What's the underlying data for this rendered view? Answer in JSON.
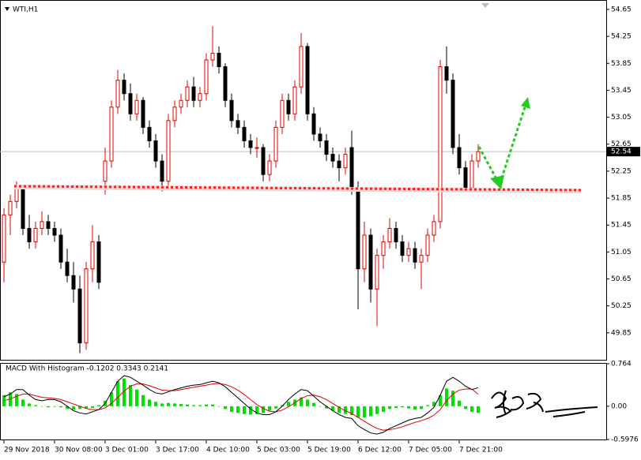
{
  "chart_data": [
    {
      "type": "candlestick",
      "title": "WTI,H1",
      "categories": [
        "29 Nov 2018",
        null,
        null,
        null,
        null,
        null,
        null,
        null,
        "30 Nov 08:00",
        null,
        null,
        null,
        null,
        null,
        null,
        null,
        "3 Dec 01:00",
        null,
        null,
        null,
        null,
        null,
        null,
        null,
        "3 Dec 17:00",
        null,
        null,
        null,
        null,
        null,
        null,
        null,
        "4 Dec 10:00",
        null,
        null,
        null,
        null,
        null,
        null,
        null,
        "5 Dec 03:00",
        null,
        null,
        null,
        null,
        null,
        null,
        null,
        "5 Dec 19:00",
        null,
        null,
        null,
        null,
        null,
        null,
        null,
        "6 Dec 12:00",
        null,
        null,
        null,
        null,
        null,
        null,
        null,
        "7 Dec 05:00",
        null,
        null,
        null,
        null,
        null,
        null,
        null,
        "7 Dec 21:00",
        null,
        null,
        null
      ],
      "open": [
        50.9,
        51.6,
        51.8,
        52.0,
        51.4,
        51.2,
        51.4,
        51.5,
        51.4,
        51.3,
        50.9,
        50.7,
        50.5,
        49.7,
        50.8,
        51.2,
        52.1,
        52.4,
        53.2,
        53.6,
        53.4,
        53.1,
        53.3,
        52.9,
        52.7,
        52.4,
        52.1,
        53.0,
        53.2,
        53.3,
        53.5,
        53.3,
        53.4,
        53.9,
        54.0,
        53.8,
        53.3,
        53.0,
        52.9,
        52.7,
        52.6,
        52.6,
        52.2,
        52.4,
        52.9,
        53.3,
        53.1,
        53.5,
        54.1,
        53.1,
        52.8,
        52.7,
        52.5,
        52.4,
        52.3,
        52.6,
        52.0,
        50.8,
        51.3,
        50.5,
        51.0,
        51.2,
        51.4,
        51.2,
        51.0,
        51.1,
        50.9,
        51.0,
        51.3,
        51.5,
        53.8,
        53.6,
        52.6,
        52.3,
        52.0,
        52.4
      ],
      "high": [
        51.7,
        51.9,
        52.1,
        52.05,
        51.6,
        51.5,
        51.65,
        51.6,
        51.5,
        51.4,
        51.1,
        50.9,
        50.7,
        50.9,
        51.45,
        51.3,
        52.6,
        53.3,
        53.75,
        53.7,
        53.55,
        53.4,
        53.35,
        53.0,
        52.8,
        52.5,
        53.1,
        53.3,
        53.4,
        53.6,
        53.65,
        53.5,
        54.0,
        54.4,
        54.1,
        53.85,
        53.4,
        53.1,
        53.0,
        52.8,
        52.75,
        52.65,
        52.5,
        53.0,
        53.4,
        53.4,
        53.6,
        54.3,
        54.15,
        53.2,
        52.9,
        52.8,
        52.6,
        52.5,
        52.6,
        52.85,
        52.1,
        51.5,
        51.4,
        51.1,
        51.3,
        51.55,
        51.5,
        51.3,
        51.2,
        51.2,
        51.1,
        51.4,
        51.6,
        53.9,
        54.1,
        53.7,
        52.8,
        52.4,
        52.5,
        52.65
      ],
      "low": [
        50.6,
        51.3,
        51.7,
        51.3,
        51.1,
        51.1,
        51.3,
        51.3,
        51.2,
        50.8,
        50.6,
        50.3,
        49.55,
        49.6,
        50.6,
        50.5,
        51.9,
        52.3,
        53.1,
        53.3,
        53.0,
        53.0,
        52.8,
        52.6,
        52.3,
        51.95,
        52.0,
        52.9,
        53.1,
        53.2,
        53.2,
        53.2,
        53.3,
        53.8,
        53.7,
        53.2,
        52.9,
        52.8,
        52.6,
        52.5,
        52.45,
        52.1,
        52.1,
        52.3,
        52.8,
        53.0,
        53.0,
        53.4,
        53.0,
        52.7,
        52.6,
        52.4,
        52.3,
        52.1,
        52.2,
        51.9,
        50.2,
        50.6,
        50.3,
        49.95,
        50.8,
        51.1,
        51.1,
        50.9,
        50.9,
        50.8,
        50.5,
        50.9,
        51.2,
        51.4,
        53.4,
        52.5,
        52.2,
        51.95,
        51.95,
        52.3
      ],
      "close": [
        51.6,
        51.8,
        52.0,
        51.4,
        51.2,
        51.4,
        51.5,
        51.4,
        51.3,
        50.9,
        50.7,
        50.5,
        49.7,
        50.8,
        51.2,
        50.6,
        52.4,
        53.2,
        53.6,
        53.4,
        53.1,
        53.3,
        52.9,
        52.7,
        52.4,
        52.1,
        53.0,
        53.2,
        53.3,
        53.5,
        53.3,
        53.4,
        53.9,
        54.0,
        53.8,
        53.3,
        53.0,
        52.9,
        52.7,
        52.6,
        52.6,
        52.2,
        52.4,
        52.9,
        53.3,
        53.1,
        53.5,
        54.1,
        53.1,
        52.8,
        52.7,
        52.5,
        52.4,
        52.3,
        52.5,
        52.0,
        50.8,
        51.3,
        50.5,
        51.0,
        51.2,
        51.4,
        51.2,
        51.0,
        51.1,
        50.9,
        51.0,
        51.3,
        51.5,
        53.8,
        53.6,
        52.6,
        52.3,
        52.0,
        52.4,
        52.54
      ],
      "up_color": "#e00000",
      "down_color": "#000000",
      "current_price": 52.54,
      "ylim": [
        49.45,
        54.79
      ],
      "yticks": [
        54.65,
        54.25,
        53.85,
        53.45,
        53.05,
        52.65,
        52.25,
        51.85,
        51.45,
        51.05,
        50.65,
        50.25,
        49.85
      ]
    },
    {
      "type": "macd",
      "title": "MACD With Histogram -0.1202 0.3343 0.2141",
      "histogram": {
        "color": "#00e000",
        "values": [
          0.2,
          0.25,
          0.22,
          0.12,
          0.05,
          0.02,
          0.0,
          -0.02,
          -0.01,
          -0.02,
          -0.05,
          -0.06,
          -0.05,
          -0.04,
          -0.03,
          0.02,
          0.1,
          0.25,
          0.45,
          0.5,
          0.38,
          0.3,
          0.2,
          0.12,
          0.08,
          0.05,
          0.06,
          0.05,
          0.04,
          0.03,
          0.02,
          0.02,
          0.03,
          0.03,
          0.0,
          -0.05,
          -0.1,
          -0.12,
          -0.14,
          -0.15,
          -0.14,
          -0.12,
          -0.08,
          -0.04,
          0.02,
          0.08,
          0.12,
          0.16,
          0.12,
          0.06,
          0.0,
          -0.04,
          -0.08,
          -0.12,
          -0.14,
          -0.16,
          -0.2,
          -0.2,
          -0.18,
          -0.14,
          -0.1,
          -0.05,
          -0.03,
          -0.02,
          -0.04,
          -0.06,
          -0.05,
          0.02,
          0.08,
          0.2,
          0.32,
          0.28,
          0.1,
          -0.05,
          -0.1,
          -0.1202
        ]
      },
      "main": {
        "color": "#000000",
        "values": [
          0.17,
          0.22,
          0.3,
          0.3,
          0.2,
          0.12,
          0.1,
          0.12,
          0.12,
          0.08,
          0.0,
          -0.08,
          -0.12,
          -0.14,
          -0.1,
          -0.06,
          0.05,
          0.25,
          0.45,
          0.55,
          0.52,
          0.45,
          0.38,
          0.3,
          0.24,
          0.22,
          0.26,
          0.3,
          0.33,
          0.36,
          0.38,
          0.39,
          0.42,
          0.45,
          0.42,
          0.35,
          0.25,
          0.15,
          0.05,
          -0.05,
          -0.12,
          -0.15,
          -0.15,
          -0.1,
          0.0,
          0.12,
          0.22,
          0.3,
          0.28,
          0.18,
          0.08,
          0.0,
          -0.08,
          -0.15,
          -0.2,
          -0.22,
          -0.35,
          -0.42,
          -0.48,
          -0.5,
          -0.47,
          -0.4,
          -0.35,
          -0.3,
          -0.25,
          -0.22,
          -0.2,
          -0.12,
          -0.02,
          0.2,
          0.45,
          0.52,
          0.45,
          0.36,
          0.3,
          0.3343
        ]
      },
      "signal": {
        "color": "#e00000",
        "values": [
          0.1,
          0.13,
          0.18,
          0.22,
          0.22,
          0.19,
          0.16,
          0.15,
          0.14,
          0.12,
          0.08,
          0.04,
          0.0,
          -0.04,
          -0.06,
          -0.06,
          -0.03,
          0.05,
          0.16,
          0.27,
          0.36,
          0.4,
          0.4,
          0.37,
          0.33,
          0.29,
          0.28,
          0.28,
          0.3,
          0.32,
          0.34,
          0.36,
          0.38,
          0.4,
          0.41,
          0.39,
          0.35,
          0.29,
          0.21,
          0.12,
          0.03,
          -0.04,
          -0.09,
          -0.1,
          -0.07,
          -0.01,
          0.06,
          0.14,
          0.19,
          0.2,
          0.17,
          0.12,
          0.05,
          -0.02,
          -0.08,
          -0.13,
          -0.2,
          -0.27,
          -0.34,
          -0.4,
          -0.43,
          -0.42,
          -0.4,
          -0.37,
          -0.33,
          -0.29,
          -0.26,
          -0.22,
          -0.16,
          -0.06,
          0.1,
          0.22,
          0.29,
          0.31,
          0.31,
          0.2141
        ]
      },
      "ylim": [
        -0.5976,
        0.764
      ],
      "yticks": [
        0.764,
        {
          "value": 0,
          "label": "0.00"
        },
        -0.5976
      ]
    }
  ]
}
